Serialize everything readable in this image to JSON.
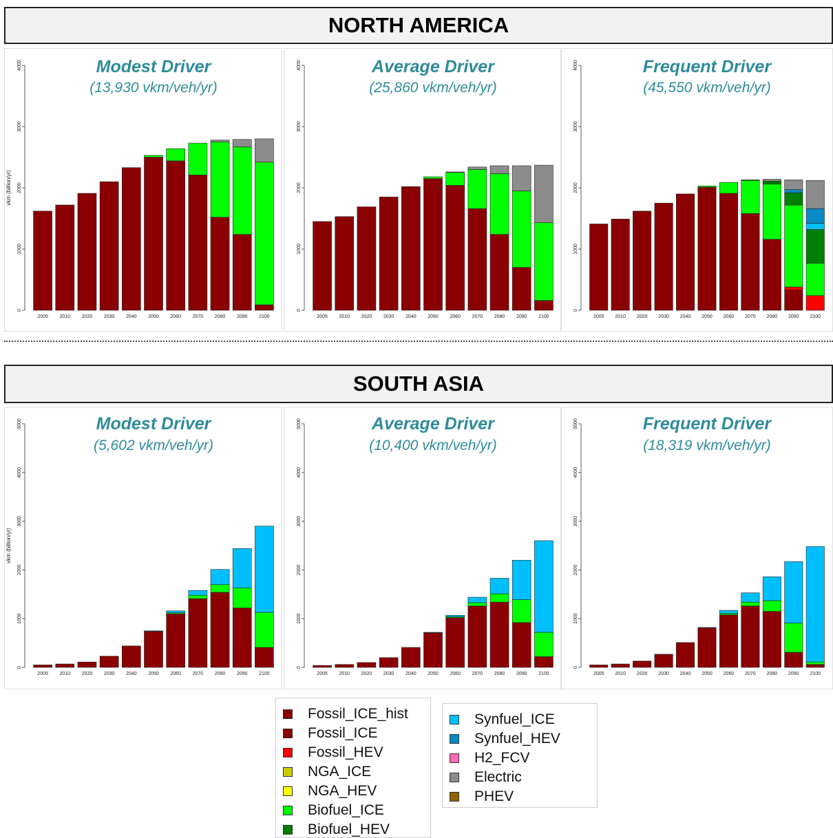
{
  "regions": [
    {
      "title": "NORTH AMERICA"
    },
    {
      "title": "SOUTH ASIA"
    }
  ],
  "legend": {
    "items": [
      {
        "label": "Fossil_ICE_hist",
        "color": "#8b0000"
      },
      {
        "label": "Fossil_ICE",
        "color": "#8b0000"
      },
      {
        "label": "Fossil_HEV",
        "color": "#ff0000"
      },
      {
        "label": "NGA_ICE",
        "color": "#cccc00"
      },
      {
        "label": "NGA_HEV",
        "color": "#ffff00"
      },
      {
        "label": "Biofuel_ICE",
        "color": "#00ff00"
      },
      {
        "label": "Biofuel_HEV",
        "color": "#008000"
      },
      {
        "label": "Synfuel_ICE",
        "color": "#00bfff"
      },
      {
        "label": "Synfuel_HEV",
        "color": "#0a8ac4"
      },
      {
        "label": "H2_FCV",
        "color": "#ff69b4"
      },
      {
        "label": "Electric",
        "color": "#8c8c8c"
      },
      {
        "label": "PHEV",
        "color": "#8b6508"
      }
    ]
  },
  "chart_data": [
    {
      "type": "bar",
      "stacked": true,
      "region": "NORTH AMERICA",
      "title": "Modest Driver",
      "subtitle": "(13,930 vkm/veh/yr)",
      "ylabel": "vkm (billion/yr)",
      "ylim": [
        0,
        4000
      ],
      "yticks": [
        "0",
        "1000",
        "2000",
        "3000",
        "4000"
      ],
      "categories": [
        "2005",
        "2010",
        "2020",
        "2030",
        "2040",
        "2050",
        "2060",
        "2070",
        "2080",
        "2090",
        "2100"
      ],
      "series": [
        {
          "name": "Fossil_ICE",
          "values": [
            1620,
            1720,
            1910,
            2100,
            2330,
            2500,
            2440,
            2210,
            1520,
            1240,
            90
          ]
        },
        {
          "name": "Biofuel_ICE",
          "values": [
            0,
            0,
            0,
            0,
            0,
            30,
            200,
            520,
            1230,
            1430,
            2330
          ]
        },
        {
          "name": "Electric",
          "values": [
            0,
            0,
            0,
            0,
            0,
            0,
            0,
            0,
            30,
            120,
            380
          ]
        }
      ]
    },
    {
      "type": "bar",
      "stacked": true,
      "region": "NORTH AMERICA",
      "title": "Average Driver",
      "subtitle": "(25,860 vkm/veh/yr)",
      "ylabel": "",
      "ylim": [
        0,
        4000
      ],
      "yticks": [
        "0",
        "1000",
        "2000",
        "3000",
        "4000"
      ],
      "categories": [
        "2005",
        "2010",
        "2020",
        "2030",
        "2040",
        "2050",
        "2060",
        "2070",
        "2080",
        "2090",
        "2100"
      ],
      "series": [
        {
          "name": "Fossil_ICE",
          "values": [
            1450,
            1530,
            1690,
            1850,
            2020,
            2150,
            2040,
            1660,
            1240,
            700,
            160
          ]
        },
        {
          "name": "Biofuel_ICE",
          "values": [
            0,
            0,
            0,
            0,
            0,
            30,
            210,
            640,
            990,
            1250,
            1270
          ]
        },
        {
          "name": "Electric",
          "values": [
            0,
            0,
            0,
            0,
            0,
            0,
            10,
            40,
            130,
            410,
            940
          ]
        }
      ]
    },
    {
      "type": "bar",
      "stacked": true,
      "region": "NORTH AMERICA",
      "title": "Frequent Driver",
      "subtitle": "(45,550 vkm/veh/yr)",
      "ylabel": "",
      "ylim": [
        0,
        4000
      ],
      "yticks": [
        "0",
        "1000",
        "2000",
        "3000",
        "4000"
      ],
      "categories": [
        "2005",
        "2010",
        "2020",
        "2030",
        "2040",
        "2050",
        "2060",
        "2070",
        "2080",
        "2090",
        "2100"
      ],
      "series": [
        {
          "name": "Fossil_ICE",
          "values": [
            1410,
            1490,
            1620,
            1750,
            1900,
            2010,
            1910,
            1580,
            1160,
            330,
            0
          ]
        },
        {
          "name": "Fossil_HEV",
          "values": [
            0,
            0,
            0,
            0,
            0,
            0,
            0,
            0,
            0,
            50,
            240
          ]
        },
        {
          "name": "Biofuel_ICE",
          "values": [
            0,
            0,
            0,
            0,
            0,
            20,
            180,
            540,
            900,
            1340,
            530
          ]
        },
        {
          "name": "Biofuel_HEV",
          "values": [
            0,
            0,
            0,
            0,
            0,
            0,
            0,
            10,
            50,
            200,
            550
          ]
        },
        {
          "name": "Synfuel_ICE",
          "values": [
            0,
            0,
            0,
            0,
            0,
            0,
            0,
            0,
            0,
            0,
            100
          ]
        },
        {
          "name": "Synfuel_HEV",
          "values": [
            0,
            0,
            0,
            0,
            0,
            0,
            0,
            0,
            0,
            50,
            240
          ]
        },
        {
          "name": "Electric",
          "values": [
            0,
            0,
            0,
            0,
            0,
            0,
            0,
            0,
            30,
            160,
            460
          ]
        }
      ]
    },
    {
      "type": "bar",
      "stacked": true,
      "region": "SOUTH ASIA",
      "title": "Modest Driver",
      "subtitle": "(5,602 vkm/veh/yr)",
      "ylabel": "vkm (billion/yr)",
      "ylim": [
        0,
        5000
      ],
      "yticks": [
        "0",
        "1000",
        "2000",
        "3000",
        "4000",
        "5000"
      ],
      "categories": [
        "2005",
        "2010",
        "2020",
        "2030",
        "2040",
        "2050",
        "2060",
        "2070",
        "2080",
        "2090",
        "2100"
      ],
      "series": [
        {
          "name": "Fossil_ICE",
          "values": [
            50,
            70,
            110,
            230,
            440,
            740,
            1100,
            1410,
            1540,
            1220,
            410
          ]
        },
        {
          "name": "Biofuel_ICE",
          "values": [
            0,
            0,
            0,
            0,
            0,
            0,
            20,
            70,
            160,
            410,
            720
          ]
        },
        {
          "name": "Synfuel_ICE",
          "values": [
            0,
            0,
            0,
            0,
            0,
            10,
            40,
            100,
            310,
            810,
            1770
          ]
        }
      ]
    },
    {
      "type": "bar",
      "stacked": true,
      "region": "SOUTH ASIA",
      "title": "Average Driver",
      "subtitle": "(10,400 vkm/veh/yr)",
      "ylabel": "",
      "ylim": [
        0,
        5000
      ],
      "yticks": [
        "0",
        "1000",
        "2000",
        "3000",
        "4000",
        "5000"
      ],
      "categories": [
        "2005",
        "2010",
        "2020",
        "2030",
        "2040",
        "2050",
        "2060",
        "2070",
        "2080",
        "2090",
        "2100"
      ],
      "series": [
        {
          "name": "Fossil_ICE",
          "values": [
            40,
            60,
            100,
            200,
            410,
            710,
            1020,
            1260,
            1340,
            920,
            220
          ]
        },
        {
          "name": "Biofuel_ICE",
          "values": [
            0,
            0,
            0,
            0,
            0,
            0,
            20,
            70,
            170,
            470,
            500
          ]
        },
        {
          "name": "Synfuel_ICE",
          "values": [
            0,
            0,
            0,
            0,
            0,
            10,
            30,
            110,
            320,
            810,
            1880
          ]
        }
      ]
    },
    {
      "type": "bar",
      "stacked": true,
      "region": "SOUTH ASIA",
      "title": "Frequent Driver",
      "subtitle": "(18,319 vkm/veh/yr)",
      "ylabel": "",
      "ylim": [
        0,
        5000
      ],
      "yticks": [
        "0",
        "1000",
        "2000",
        "3000",
        "4000",
        "5000"
      ],
      "categories": [
        "2005",
        "2010",
        "2020",
        "2030",
        "2040",
        "2050",
        "2060",
        "2070",
        "2080",
        "2090",
        "2100"
      ],
      "series": [
        {
          "name": "Fossil_ICE",
          "values": [
            50,
            70,
            130,
            270,
            510,
            810,
            1080,
            1260,
            1150,
            310,
            60
          ]
        },
        {
          "name": "Biofuel_ICE",
          "values": [
            0,
            0,
            0,
            0,
            0,
            0,
            30,
            80,
            220,
            600,
            50
          ]
        },
        {
          "name": "Synfuel_ICE",
          "values": [
            0,
            0,
            0,
            0,
            0,
            10,
            60,
            190,
            490,
            1260,
            2370
          ]
        }
      ]
    }
  ]
}
